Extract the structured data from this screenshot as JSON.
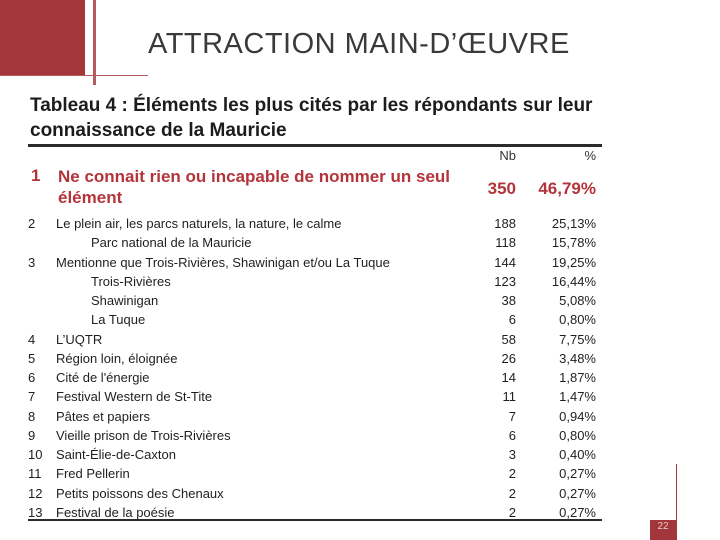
{
  "slide": {
    "title": "ATTRACTION MAIN-D’ŒUVRE",
    "accent_color": "#a2363b",
    "page_number": "22"
  },
  "table": {
    "title": "Tableau 4 : Éléments les plus cités par les répondants sur leur connaissance de la Mauricie",
    "col_nb": "Nb",
    "col_pct": "%",
    "highlight": {
      "num": "1",
      "label": "Ne connait rien ou incapable de nommer un seul élément",
      "nb": "350",
      "pct": "46,79%"
    },
    "rows": [
      {
        "num": "2",
        "label": "Le plein air, les parcs naturels, la nature, le calme",
        "nb": "188",
        "pct": "25,13%",
        "sub": false
      },
      {
        "num": "",
        "label": "Parc national de la Mauricie",
        "nb": "118",
        "pct": "15,78%",
        "sub": true
      },
      {
        "num": "3",
        "label": "Mentionne que Trois-Rivières, Shawinigan et/ou La Tuque",
        "nb": "144",
        "pct": "19,25%",
        "sub": false
      },
      {
        "num": "",
        "label": "Trois-Rivières",
        "nb": "123",
        "pct": "16,44%",
        "sub": true
      },
      {
        "num": "",
        "label": "Shawinigan",
        "nb": "38",
        "pct": "5,08%",
        "sub": true
      },
      {
        "num": "",
        "label": "La Tuque",
        "nb": "6",
        "pct": "0,80%",
        "sub": true
      },
      {
        "num": "4",
        "label": "L’UQTR",
        "nb": "58",
        "pct": "7,75%",
        "sub": false
      },
      {
        "num": "5",
        "label": "Région loin, éloignée",
        "nb": "26",
        "pct": "3,48%",
        "sub": false
      },
      {
        "num": "6",
        "label": "Cité de l'énergie",
        "nb": "14",
        "pct": "1,87%",
        "sub": false
      },
      {
        "num": "7",
        "label": "Festival Western de St-Tite",
        "nb": "11",
        "pct": "1,47%",
        "sub": false
      },
      {
        "num": "8",
        "label": "Pâtes et papiers",
        "nb": "7",
        "pct": "0,94%",
        "sub": false
      },
      {
        "num": "9",
        "label": "Vieille prison de Trois-Rivières",
        "nb": "6",
        "pct": "0,80%",
        "sub": false
      },
      {
        "num": "10",
        "label": "Saint-Élie-de-Caxton",
        "nb": "3",
        "pct": "0,40%",
        "sub": false
      },
      {
        "num": "11",
        "label": "Fred Pellerin",
        "nb": "2",
        "pct": "0,27%",
        "sub": false
      },
      {
        "num": "12",
        "label": "Petits poissons des Chenaux",
        "nb": "2",
        "pct": "0,27%",
        "sub": false
      },
      {
        "num": "13",
        "label": "Festival de la poésie",
        "nb": "2",
        "pct": "0,27%",
        "sub": false
      }
    ]
  }
}
